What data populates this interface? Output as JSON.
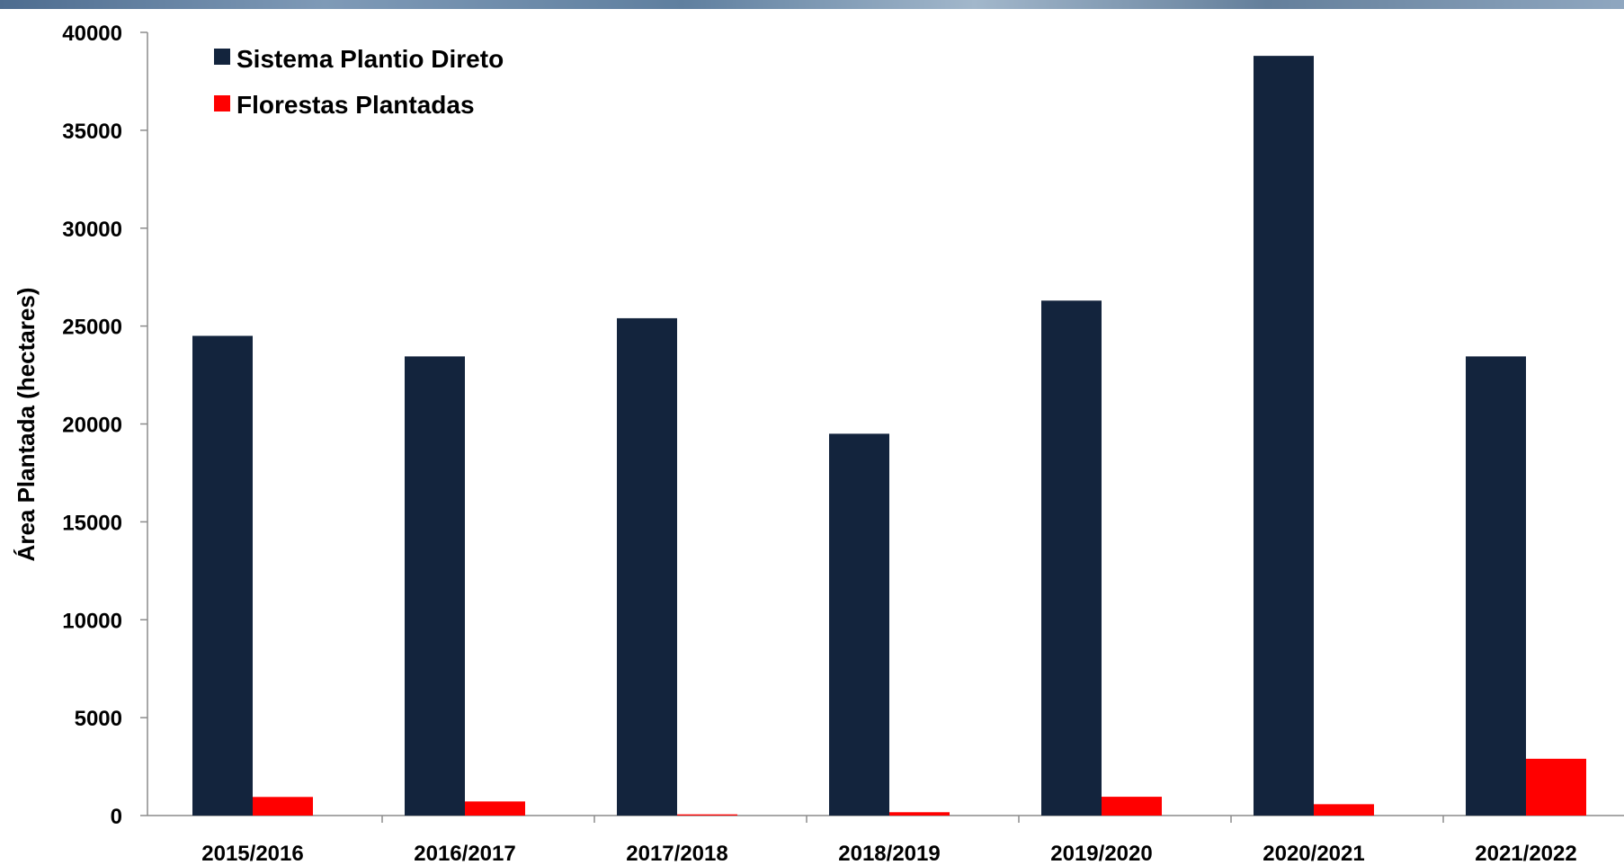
{
  "chart_data": {
    "type": "bar",
    "title": "",
    "xlabel": "",
    "ylabel": "Área Plantada (hectares)",
    "categories": [
      "2015/2016",
      "2016/2017",
      "2017/2018",
      "2018/2019",
      "2019/2020",
      "2020/2021",
      "2021/2022"
    ],
    "series": [
      {
        "name": "Sistema Plantio Direto",
        "values": [
          24500,
          23450,
          25400,
          19500,
          26300,
          38800,
          23450
        ],
        "color": "#13243d"
      },
      {
        "name": "Florestas Plantadas",
        "values": [
          950,
          720,
          60,
          170,
          960,
          580,
          2900
        ],
        "color": "#ff0000"
      }
    ],
    "ylim": [
      0,
      40000
    ],
    "yticks": [
      "0",
      "5000",
      "10000",
      "15000",
      "20000",
      "25000",
      "30000",
      "35000",
      "40000"
    ],
    "grid": false,
    "legend_position": "top-left"
  }
}
